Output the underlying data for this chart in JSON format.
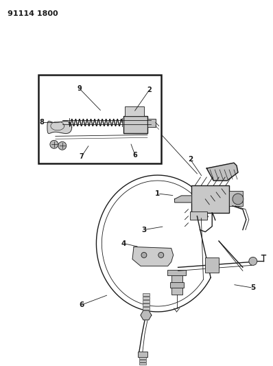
{
  "title_code": "91114 1800",
  "bg_color": "#ffffff",
  "line_color": "#1a1a1a",
  "fig_width": 3.98,
  "fig_height": 5.33,
  "dpi": 100
}
